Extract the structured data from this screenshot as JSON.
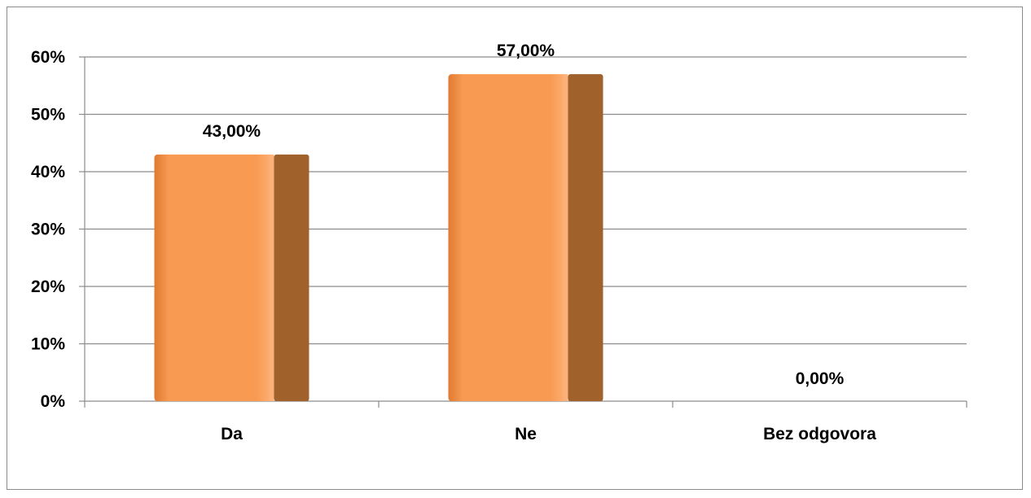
{
  "chart_data": {
    "type": "bar",
    "categories": [
      "Da",
      "Ne",
      "Bez odgovora"
    ],
    "values": [
      43.0,
      57.0,
      0.0
    ],
    "data_labels": [
      "43,00%",
      "57,00%",
      "0,00%"
    ],
    "yticks": [
      "0%",
      "10%",
      "20%",
      "30%",
      "40%",
      "50%",
      "60%"
    ],
    "ylim": [
      0,
      60
    ],
    "grid": true,
    "legend": "none",
    "title": "",
    "xlabel": "",
    "ylabel": "",
    "colors": {
      "bar_front": "#F79646",
      "bar_front_light": "#FDB27A",
      "bar_side": "#A0612B",
      "grid": "#8c8c8c"
    }
  }
}
